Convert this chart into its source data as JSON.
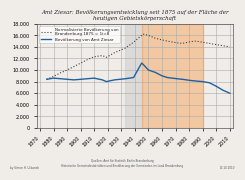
{
  "title_line1": "Amt Ziesar: Bevölkerungsentwicklung seit 1875 auf der Fläche der",
  "title_line2": "heutigen Gebietskörperschaft",
  "legend_blue": "Bevölkerung von Amt Ziesar",
  "legend_dot": "Normalisierte Bevölkerung von\nBrandenburg 1875 = 1i=8",
  "xlabel": "",
  "ylabel": "",
  "ylim": [
    0,
    18000
  ],
  "yticks": [
    0,
    2000,
    4000,
    6000,
    8000,
    10000,
    12000,
    14000,
    16000,
    18000
  ],
  "ytick_labels": [
    "0",
    "2.000",
    "4.000",
    "6.000",
    "8.000",
    "10.000",
    "12.000",
    "14.000",
    "16.000",
    "18.000"
  ],
  "xticks": [
    1870,
    1880,
    1890,
    1900,
    1910,
    1920,
    1930,
    1940,
    1950,
    1960,
    1970,
    1980,
    1990,
    2000,
    2010
  ],
  "xlim": [
    1868,
    2012
  ],
  "nazi_start": 1933,
  "nazi_end": 1945,
  "east_start": 1945,
  "east_end": 1990,
  "nazi_color": "#d3d3d3",
  "east_color": "#f4a460",
  "background_color": "#f5f5f0",
  "pop_ziesar_x": [
    1875,
    1880,
    1885,
    1890,
    1895,
    1900,
    1905,
    1910,
    1916,
    1919,
    1925,
    1933,
    1939,
    1945,
    1946,
    1950,
    1955,
    1960,
    1964,
    1971,
    1975,
    1981,
    1985,
    1990,
    1995,
    2000,
    2005,
    2010
  ],
  "pop_ziesar_y": [
    8400,
    8600,
    8500,
    8400,
    8300,
    8400,
    8500,
    8600,
    8300,
    8000,
    8300,
    8500,
    8700,
    11200,
    11000,
    10000,
    9600,
    9000,
    8700,
    8500,
    8400,
    8200,
    8100,
    8000,
    7800,
    7200,
    6500,
    6000
  ],
  "pop_brand_x": [
    1875,
    1880,
    1885,
    1890,
    1895,
    1900,
    1905,
    1910,
    1916,
    1919,
    1925,
    1933,
    1939,
    1946,
    1950,
    1955,
    1960,
    1964,
    1971,
    1975,
    1981,
    1985,
    1990,
    1995,
    2000,
    2005,
    2010
  ],
  "pop_brand_y": [
    8400,
    8900,
    9500,
    10000,
    10600,
    11200,
    11800,
    12300,
    12500,
    12200,
    13000,
    13800,
    14800,
    16200,
    16000,
    15500,
    15200,
    15000,
    14700,
    14600,
    14900,
    15000,
    14800,
    14600,
    14400,
    14200,
    14000
  ],
  "blue_color": "#2060a0",
  "dot_color": "#404040",
  "source_text": "Quellen: Amt für Statistik Berlin-Brandenburg\nHistorische Gemeindestatistiken und Bevölkerung der Gemeinden im Land Brandenburg",
  "author_text": "by Simon H. Urbanek",
  "date_text": "13.10.2010"
}
